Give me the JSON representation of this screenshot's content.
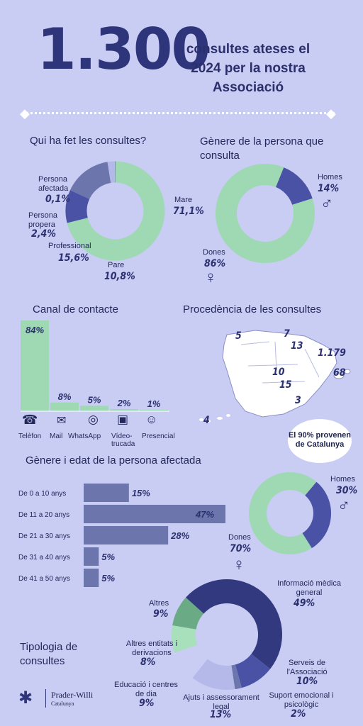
{
  "header": {
    "big_number": "1.300",
    "headline": "consultes ateses el 2024 per la nostra Associació"
  },
  "colors": {
    "background": "#c9ccf3",
    "green": "#9fd9b4",
    "dark": "#33397e",
    "blue": "#4a52a6",
    "slate": "#6c76ad",
    "light": "#b4b9ea"
  },
  "chart_data": [
    {
      "type": "pie",
      "title": "Qui ha fet les consultes?",
      "slices": [
        {
          "label": "Mare",
          "value": 71.1,
          "display": "71,1%"
        },
        {
          "label": "Pare",
          "value": 10.8,
          "display": "10,8%"
        },
        {
          "label": "Professional",
          "value": 15.6,
          "display": "15,6%"
        },
        {
          "label": "Persona propera",
          "value": 2.4,
          "display": "2,4%"
        },
        {
          "label": "Persona afectada",
          "value": 0.1,
          "display": "0,1%"
        }
      ]
    },
    {
      "type": "pie",
      "title": "Gènere de la persona que consulta",
      "slices": [
        {
          "label": "Homes",
          "value": 14,
          "display": "14%"
        },
        {
          "label": "Dones",
          "value": 86,
          "display": "86%"
        }
      ]
    },
    {
      "type": "bar",
      "title": "Canal de contacte",
      "categories": [
        "Telèfon",
        "Mail",
        "WhatsApp",
        "Vídeo-trucada",
        "Presencial"
      ],
      "values": [
        84,
        8,
        5,
        2,
        1
      ],
      "displays": [
        "84%",
        "8%",
        "5%",
        "2%",
        "1%"
      ]
    },
    {
      "type": "table",
      "title": "Procedència de les consultes",
      "values": [
        "5",
        "7",
        "13",
        "1.179",
        "10",
        "15",
        "68",
        "3",
        "4"
      ],
      "note": "El 90% provenen de Catalunya"
    },
    {
      "type": "bar",
      "title": "Gènere i edat de la persona afectada",
      "categories": [
        "De 0 a 10 anys",
        "De 11 a 20 anys",
        "De 21 a 30 anys",
        "De 31 a 40 anys",
        "De 41 a 50 anys"
      ],
      "values": [
        15,
        47,
        28,
        5,
        5
      ],
      "displays": [
        "15%",
        "47%",
        "28%",
        "5%",
        "5%"
      ]
    },
    {
      "type": "pie",
      "title": "",
      "slices": [
        {
          "label": "Homes",
          "value": 30,
          "display": "30%"
        },
        {
          "label": "Dones",
          "value": 70,
          "display": "70%"
        }
      ]
    },
    {
      "type": "pie",
      "title": "Tipologia de consultes",
      "slices": [
        {
          "label": "Informació mèdica general",
          "value": 49,
          "display": "49%"
        },
        {
          "label": "Serveis de l'Associació",
          "value": 10,
          "display": "10%"
        },
        {
          "label": "Suport emocional i psicològic",
          "value": 2,
          "display": "2%"
        },
        {
          "label": "Ajuts i assessorament legal",
          "value": 13,
          "display": "13%"
        },
        {
          "label": "Educació i centres de dia",
          "value": 9,
          "display": "9%"
        },
        {
          "label": "Altres entitats i derivacions",
          "value": 8,
          "display": "8%"
        },
        {
          "label": "Altres",
          "value": 9,
          "display": "9%"
        }
      ]
    }
  ],
  "footer": {
    "logo_name": "Prader-Willi",
    "logo_sub": "Catalunya"
  }
}
